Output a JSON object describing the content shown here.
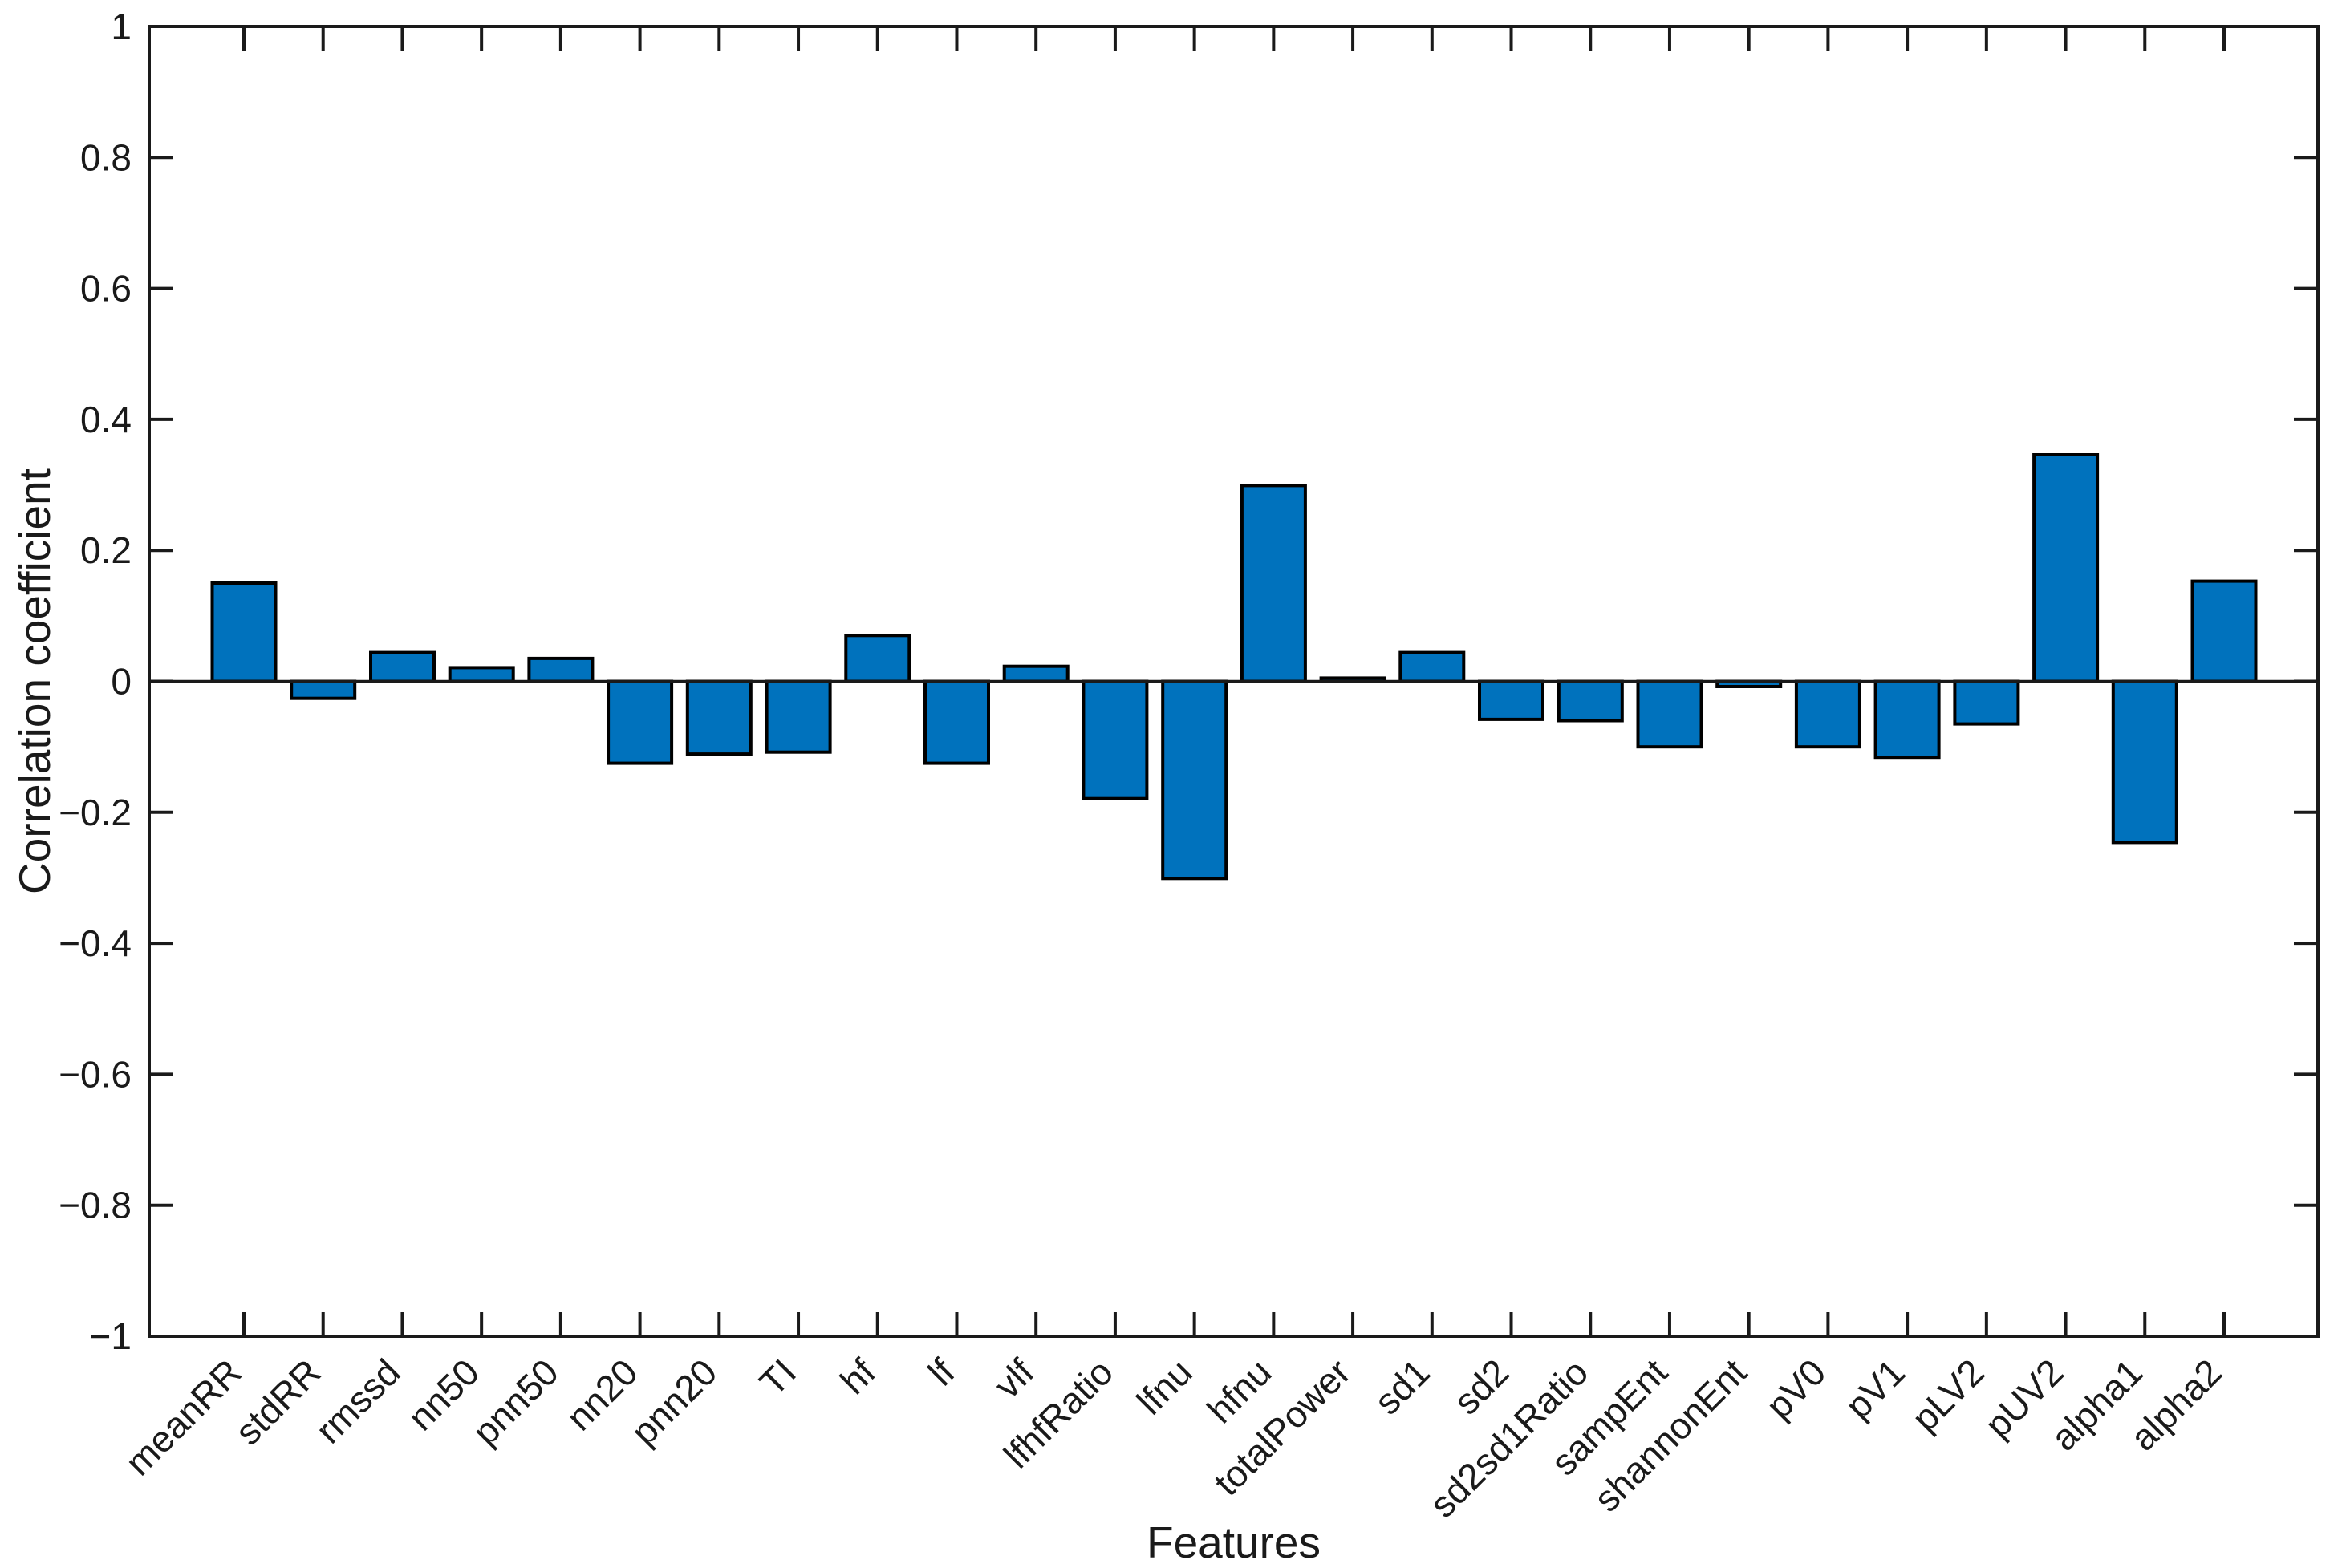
{
  "figure": {
    "background_color": "#ffffff",
    "axis_line_color": "#1a1a1a",
    "text_color": "#1a1a1a"
  },
  "chart_data": {
    "type": "bar",
    "title": "",
    "xlabel": "Features",
    "ylabel": "Correlation coefficient",
    "categories": [
      "meanRR",
      "stdRR",
      "rmssd",
      "nn50",
      "pnn50",
      "nn20",
      "pnn20",
      "TI",
      "hf",
      "lf",
      "vlf",
      "lfhfRatio",
      "lfnu",
      "hfnu",
      "totalPower",
      "sd1",
      "sd2",
      "sd2sd1Ratio",
      "sampEnt",
      "shannonEnt",
      "pV0",
      "pV1",
      "pLV2",
      "pUV2",
      "alpha1",
      "alpha2"
    ],
    "values": [
      0.15,
      -0.026,
      0.044,
      0.021,
      0.035,
      -0.125,
      -0.111,
      -0.108,
      0.07,
      -0.125,
      0.023,
      -0.179,
      -0.301,
      0.299,
      0.005,
      0.044,
      -0.058,
      -0.06,
      -0.1,
      -0.008,
      -0.1,
      -0.116,
      -0.065,
      0.346,
      -0.246,
      0.153
    ],
    "ylim": [
      -1,
      1
    ],
    "ytick_values": [
      1,
      0.8,
      0.6,
      0.4,
      0.2,
      0,
      -0.2,
      -0.4,
      -0.6,
      -0.8,
      -1
    ],
    "ytick_labels": [
      "1",
      "0.8",
      "0.6",
      "0.4",
      "0.2",
      "0",
      "−0.2",
      "−0.4",
      "−0.6",
      "−0.8",
      "−1"
    ],
    "bar_color": "#0072BD",
    "bar_edge_color": "#000000",
    "bar_width_fraction": 0.8,
    "grid": false,
    "legend": null,
    "xticklabel_rotation_deg": 45
  }
}
